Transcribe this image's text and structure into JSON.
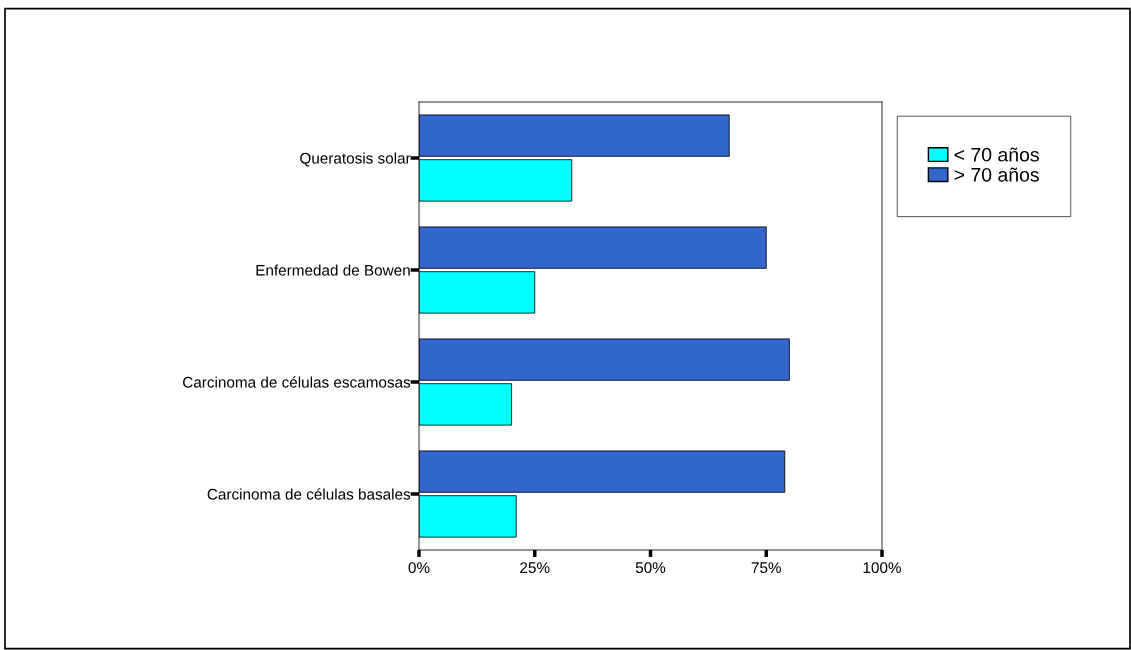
{
  "chart_data": {
    "type": "bar",
    "orientation": "horizontal",
    "categories": [
      "Queratosis solar",
      "Enfermedad de Bowen",
      "Carcinoma de células escamosas",
      "Carcinoma de células basales"
    ],
    "series": [
      {
        "name": "< 70 años",
        "color": "#00ffff",
        "values": [
          33,
          25,
          20,
          21
        ]
      },
      {
        "name": "> 70 años",
        "color": "#3366cc",
        "values": [
          67,
          75,
          80,
          79
        ]
      }
    ],
    "xlim": [
      0,
      100
    ],
    "xticks": [
      {
        "value": 0,
        "label": "0%"
      },
      {
        "value": 25,
        "label": "25%"
      },
      {
        "value": 50,
        "label": "50%"
      },
      {
        "value": 75,
        "label": "75%"
      },
      {
        "value": 100,
        "label": "100%"
      }
    ],
    "legend": "right",
    "grid": false
  }
}
